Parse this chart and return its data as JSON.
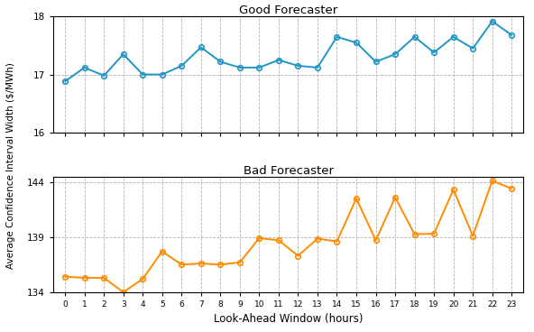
{
  "good_forecaster": {
    "title": "Good Forecaster",
    "x": [
      0,
      1,
      2,
      3,
      4,
      5,
      6,
      7,
      8,
      9,
      10,
      11,
      12,
      13,
      14,
      15,
      16,
      17,
      18,
      19,
      20,
      21,
      22,
      23
    ],
    "y": [
      16.88,
      17.12,
      16.98,
      17.35,
      17.0,
      17.0,
      17.15,
      17.47,
      17.22,
      17.12,
      17.12,
      17.25,
      17.15,
      17.12,
      17.65,
      17.55,
      17.22,
      17.35,
      17.65,
      17.38,
      17.65,
      17.45,
      17.92,
      17.68
    ],
    "color": "#2196c4",
    "ylim": [
      16.0,
      18.0
    ],
    "yticks": [
      16,
      17,
      18
    ]
  },
  "bad_forecaster": {
    "title": "Bad Forecaster",
    "x": [
      0,
      1,
      2,
      3,
      4,
      5,
      6,
      7,
      8,
      9,
      10,
      11,
      12,
      13,
      14,
      15,
      16,
      17,
      18,
      19,
      20,
      21,
      22,
      23
    ],
    "y": [
      135.4,
      135.3,
      135.3,
      134.0,
      135.2,
      137.7,
      136.5,
      136.6,
      136.5,
      136.7,
      138.9,
      138.7,
      137.3,
      138.85,
      138.6,
      142.5,
      138.7,
      142.6,
      139.25,
      139.3,
      143.3,
      139.1,
      144.1,
      143.4
    ],
    "color": "#ff8c00",
    "ylim": [
      134.0,
      144.5
    ],
    "yticks": [
      134,
      139,
      144
    ]
  },
  "xlabel": "Look-Ahead Window (hours)",
  "ylabel": "Average Confidence Interval Width ($/MWh)",
  "background_color": "#ffffff",
  "grid_color": "#aaaaaa"
}
